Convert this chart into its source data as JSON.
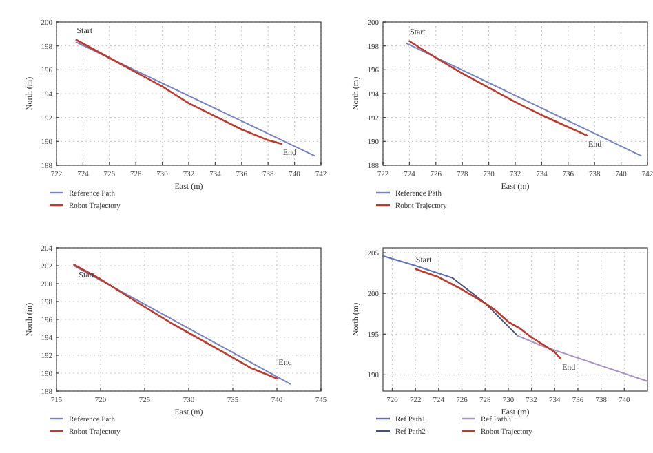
{
  "chart_data": [
    {
      "type": "line",
      "xlabel": "East (m)",
      "ylabel": "North (m)",
      "xlim": [
        722,
        742
      ],
      "xticks": [
        722,
        724,
        726,
        728,
        730,
        732,
        734,
        736,
        738,
        740,
        742
      ],
      "ylim": [
        188,
        200
      ],
      "yticks": [
        188,
        190,
        192,
        194,
        196,
        198,
        200
      ],
      "grid": true,
      "legend": "bottom",
      "annotations": [
        {
          "text": "Start",
          "x": 723.5,
          "y": 198.5
        },
        {
          "text": "End",
          "x": 739,
          "y": 189.8
        }
      ],
      "series": [
        {
          "name": "Reference Path",
          "color": "#7383c9",
          "x": [
            723.5,
            741.5
          ],
          "values": [
            198.3,
            188.8
          ]
        },
        {
          "name": "Robot Trajectory",
          "color": "#c0392b",
          "x": [
            723.5,
            726,
            728,
            730,
            732,
            734,
            736,
            738,
            739
          ],
          "values": [
            198.5,
            197.0,
            195.8,
            194.6,
            193.2,
            192.1,
            191.0,
            190.1,
            189.8
          ]
        }
      ]
    },
    {
      "type": "line",
      "xlabel": "East (m)",
      "ylabel": "North (m)",
      "xlim": [
        722,
        742
      ],
      "xticks": [
        722,
        724,
        726,
        728,
        730,
        732,
        734,
        736,
        738,
        740,
        742
      ],
      "ylim": [
        188,
        200
      ],
      "yticks": [
        188,
        190,
        192,
        194,
        196,
        198,
        200
      ],
      "grid": true,
      "legend": "bottom",
      "annotations": [
        {
          "text": "Start",
          "x": 724,
          "y": 198.4
        },
        {
          "text": "End",
          "x": 737.4,
          "y": 190.5
        }
      ],
      "series": [
        {
          "name": "Reference Path",
          "color": "#7383c9",
          "x": [
            723.8,
            741.5
          ],
          "values": [
            198.2,
            188.8
          ]
        },
        {
          "name": "Robot Trajectory",
          "color": "#c0392b",
          "x": [
            724,
            726,
            728,
            730,
            732,
            734,
            736,
            737.4
          ],
          "values": [
            198.4,
            197.0,
            195.7,
            194.5,
            193.3,
            192.2,
            191.2,
            190.5
          ]
        }
      ]
    },
    {
      "type": "line",
      "xlabel": "East (m)",
      "ylabel": "North (m)",
      "xlim": [
        715,
        745
      ],
      "xticks": [
        715,
        720,
        725,
        730,
        735,
        740,
        745
      ],
      "ylim": [
        188,
        204
      ],
      "yticks": [
        188,
        190,
        192,
        194,
        196,
        198,
        200,
        202,
        204
      ],
      "grid": true,
      "legend": "bottom",
      "annotations": [
        {
          "text": "Start",
          "x": 717,
          "y": 202.1
        },
        {
          "text": "End",
          "x": 740,
          "y": 189.4
        }
      ],
      "series": [
        {
          "name": "Reference Path",
          "color": "#7383c9",
          "x": [
            717,
            741.5
          ],
          "values": [
            202,
            188.8
          ]
        },
        {
          "name": "Robot Trajectory",
          "color": "#c0392b",
          "x": [
            717,
            720,
            724,
            728,
            730,
            734,
            737,
            740
          ],
          "values": [
            202.1,
            200.5,
            198,
            195.6,
            194.5,
            192.3,
            190.6,
            189.4
          ]
        }
      ]
    },
    {
      "type": "line",
      "xlabel": "East (m)",
      "ylabel": "North (m)",
      "xlim": [
        719.2,
        742
      ],
      "xticks": [
        720,
        722,
        724,
        726,
        728,
        730,
        732,
        734,
        736,
        738,
        740
      ],
      "ylim": [
        188,
        205.6
      ],
      "yticks": [
        190,
        195,
        200,
        205
      ],
      "grid": true,
      "legend": "bottom",
      "annotations": [
        {
          "text": "Start",
          "x": 722,
          "y": 203
        },
        {
          "text": "End",
          "x": 734.5,
          "y": 192
        }
      ],
      "series": [
        {
          "name": "Ref Path1",
          "color": "#5b6fc0",
          "x": [
            719.2,
            722,
            725.2
          ],
          "values": [
            204.6,
            203.4,
            201.9
          ]
        },
        {
          "name": "Ref Path2",
          "color": "#44527f",
          "x": [
            725.2,
            728,
            730.8
          ],
          "values": [
            201.9,
            198.8,
            194.8
          ]
        },
        {
          "name": "Ref Path3",
          "color": "#a892c8",
          "x": [
            730.8,
            733,
            742
          ],
          "values": [
            194.8,
            193.5,
            189.2
          ]
        },
        {
          "name": "Robot Trajectory",
          "color": "#c0392b",
          "x": [
            722,
            724,
            726,
            728,
            729,
            730,
            731,
            732,
            734,
            734.5
          ],
          "values": [
            203,
            202,
            200.5,
            198.8,
            197.8,
            196.5,
            195.7,
            194.6,
            192.8,
            192
          ]
        }
      ]
    }
  ]
}
